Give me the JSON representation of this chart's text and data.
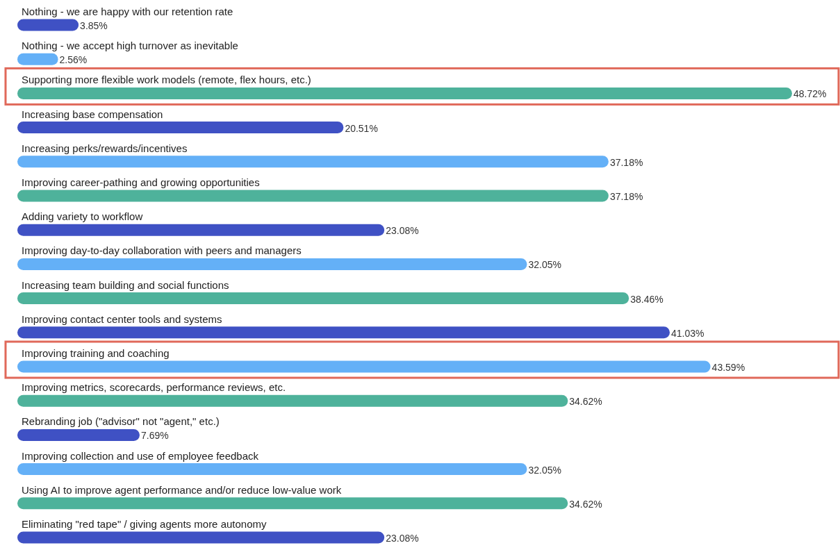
{
  "chart_data": {
    "type": "bar",
    "orientation": "horizontal",
    "categories": [
      "Nothing - we are happy with our retention rate",
      "Nothing - we accept high turnover as inevitable",
      "Supporting more flexible work models (remote, flex hours, etc.)",
      "Increasing base compensation",
      "Increasing perks/rewards/incentives",
      "Improving career-pathing and growing opportunities",
      "Adding variety to workflow",
      "Improving day-to-day collaboration with peers and managers",
      "Increasing team building and social functions",
      "Improving contact center tools and systems",
      "Improving training and coaching",
      "Improving metrics, scorecards, performance reviews, etc.",
      "Rebranding job (\"advisor\" not \"agent,\" etc.)",
      "Improving collection and use of employee feedback",
      "Using AI to improve agent performance and/or reduce low-value work",
      "Eliminating \"red tape\" / giving agents more autonomy"
    ],
    "values": [
      3.85,
      2.56,
      48.72,
      20.51,
      37.18,
      37.18,
      23.08,
      32.05,
      38.46,
      41.03,
      43.59,
      34.62,
      7.69,
      32.05,
      34.62,
      23.08
    ],
    "value_labels": [
      "3.85%",
      "2.56%",
      "48.72%",
      "20.51%",
      "37.18%",
      "37.18%",
      "23.08%",
      "32.05%",
      "38.46%",
      "41.03%",
      "43.59%",
      "34.62%",
      "7.69%",
      "32.05%",
      "34.62%",
      "23.08%"
    ],
    "colors": [
      "#3f51c4",
      "#64b0f7",
      "#4eb29b",
      "#3f51c4",
      "#64b0f7",
      "#4eb29b",
      "#3f51c4",
      "#64b0f7",
      "#4eb29b",
      "#3f51c4",
      "#64b0f7",
      "#4eb29b",
      "#3f51c4",
      "#64b0f7",
      "#4eb29b",
      "#3f51c4"
    ]
  }
}
